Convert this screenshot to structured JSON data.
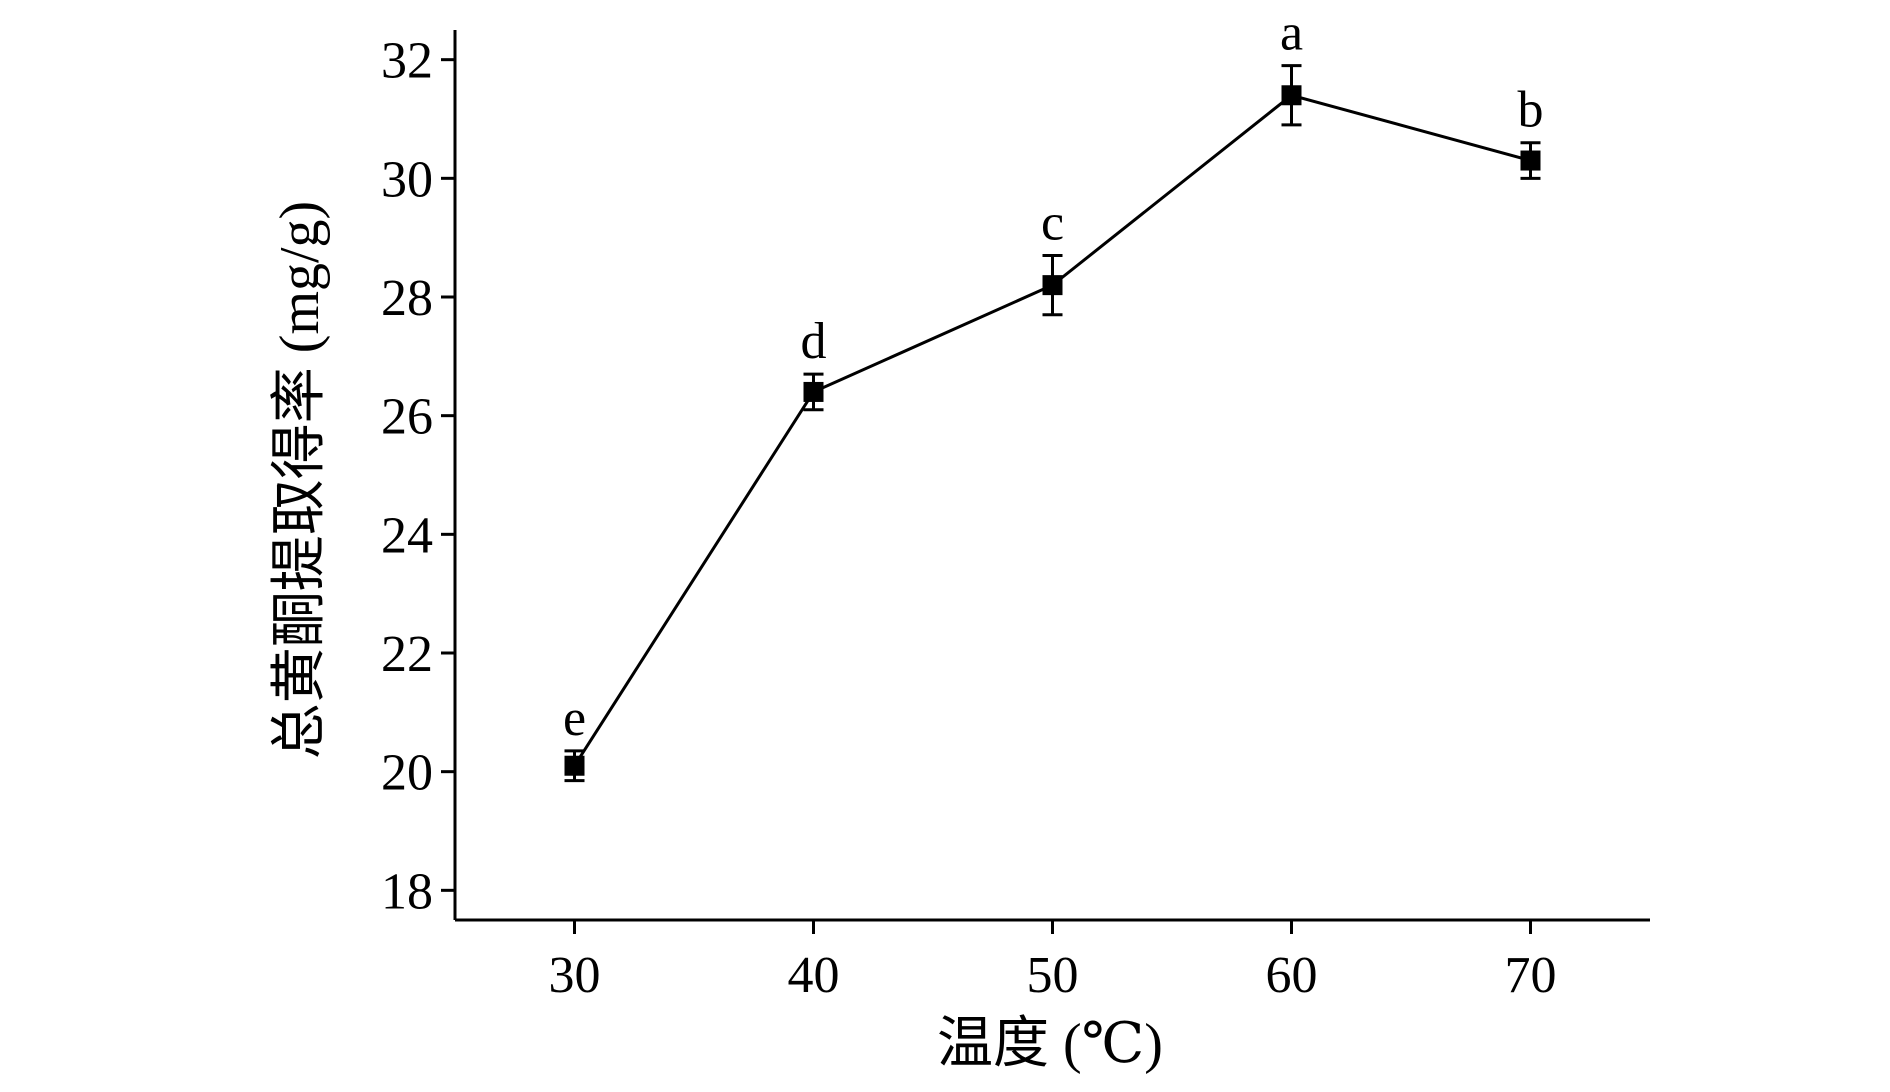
{
  "chart_data": {
    "type": "line",
    "title": "",
    "xlabel": "温度 (℃)",
    "ylabel": "总黄酮提取得率 (mg/g)",
    "x": [
      30,
      40,
      50,
      60,
      70
    ],
    "series": [
      {
        "values": [
          20.1,
          26.4,
          28.2,
          31.4,
          30.3
        ],
        "errors": [
          0.25,
          0.3,
          0.5,
          0.5,
          0.3
        ],
        "labels": [
          "e",
          "d",
          "c",
          "a",
          "b"
        ]
      }
    ],
    "xticks": [
      "30",
      "40",
      "50",
      "60",
      "70"
    ],
    "yticks": [
      "18",
      "20",
      "22",
      "24",
      "26",
      "28",
      "30",
      "32"
    ],
    "xlim": [
      25,
      75
    ],
    "ylim": [
      17.5,
      32.5
    ],
    "grid": false,
    "legend": "none",
    "colors": {
      "line": "#000000",
      "marker": "#000000",
      "axis": "#000000"
    }
  }
}
